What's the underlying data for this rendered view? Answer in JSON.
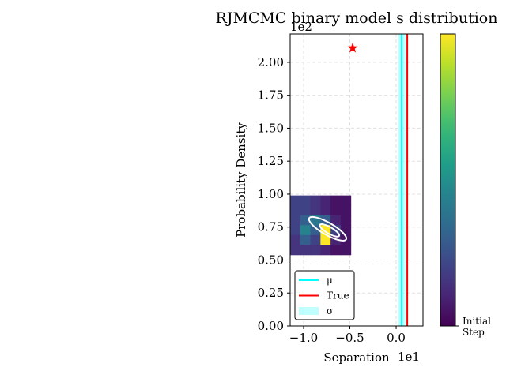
{
  "chart_data": {
    "type": "mixed",
    "title": "RJMCMC binary model s distribution",
    "xlabel": "Separation",
    "ylabel": "Probability Density",
    "x_offset_label": "1e1",
    "y_offset_label": "1e2",
    "xlim": [
      -1.145,
      0.29
    ],
    "ylim": [
      0,
      2.215
    ],
    "xticks": [
      {
        "value": -1.0,
        "label": "−1.0"
      },
      {
        "value": -0.5,
        "label": "−0.5"
      },
      {
        "value": 0.0,
        "label": "0.0"
      }
    ],
    "yticks": [
      {
        "value": 0,
        "label": "0.00"
      },
      {
        "value": 0.25,
        "label": "0.25"
      },
      {
        "value": 0.5,
        "label": "0.50"
      },
      {
        "value": 0.75,
        "label": "0.75"
      },
      {
        "value": 1.0,
        "label": "1.00"
      },
      {
        "value": 1.25,
        "label": "1.25"
      },
      {
        "value": 1.5,
        "label": "1.50"
      },
      {
        "value": 1.75,
        "label": "1.75"
      },
      {
        "value": 2.0,
        "label": "2.00"
      }
    ],
    "grid": true,
    "heatmap": {
      "xrange": [
        -1.145,
        -0.49
      ],
      "yrange": [
        0.54,
        0.99
      ],
      "colormap": "viridis",
      "values": [
        [
          0.2,
          0.2,
          0.15,
          0.1,
          0.05,
          0.05
        ],
        [
          0.2,
          0.2,
          0.15,
          0.1,
          0.05,
          0.05
        ],
        [
          0.2,
          0.3,
          0.4,
          0.3,
          0.1,
          0.05
        ],
        [
          0.2,
          0.45,
          0.3,
          1.0,
          0.2,
          0.05
        ],
        [
          0.15,
          0.3,
          0.2,
          1.0,
          0.1,
          0.05
        ],
        [
          0.15,
          0.15,
          0.15,
          0.1,
          0.05,
          0.05
        ]
      ]
    },
    "ellipses": [
      {
        "x": -0.74,
        "y": 0.737,
        "rx": 0.23,
        "ry": 0.065,
        "angle": 30,
        "color": "#ffffff"
      },
      {
        "x": -0.72,
        "y": 0.725,
        "rx": 0.12,
        "ry": 0.035,
        "angle": 30,
        "color": "#ffffff"
      }
    ],
    "vlines": [
      {
        "name": "μ",
        "x": 0.06,
        "color": "#00ffff"
      },
      {
        "name": "True",
        "x": 0.12,
        "color": "#ff0000"
      }
    ],
    "bands": [
      {
        "name": "σ",
        "x0": 0.02,
        "x1": 0.1,
        "color": "#00ffff"
      }
    ],
    "star": {
      "x": -0.47,
      "y": 2.108,
      "color": "#ff0000"
    },
    "legend": "lower left",
    "colorbar": {
      "colormap": "viridis",
      "lim": [
        0,
        1
      ],
      "ticks": [
        {
          "value": 0,
          "label": "Initial Step"
        }
      ]
    }
  }
}
